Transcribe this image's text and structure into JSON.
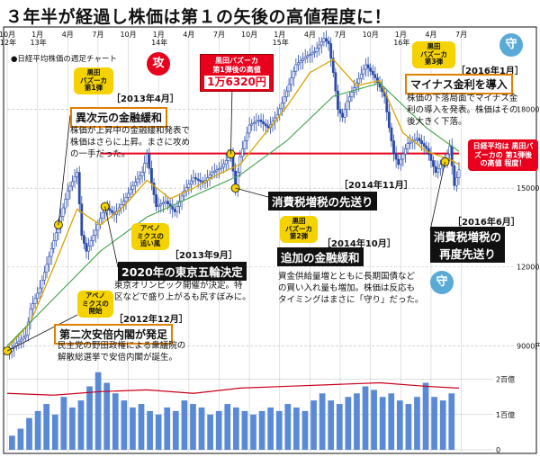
{
  "headline": "３年半が経過し株価は第１の矢後の高値程度に！",
  "legend": "●日経平均株価の週足チャート",
  "colors": {
    "up": "#2a4aa8",
    "down": "#2a4aa8",
    "ma": "#d9a400",
    "ma_long": "#3fa24a",
    "accent": "#e8001c",
    "bar": "#5a8ad6",
    "line": "#c8001c"
  },
  "stamps": [
    {
      "char": "攻",
      "color": "#e8001c"
    },
    {
      "char": "守",
      "color": "#5aaad8"
    },
    {
      "char": "守",
      "color": "#5aaad8"
    }
  ],
  "peak_box": {
    "title": "黒田バズーカ\n第1弾後の高値",
    "value": "1万6320円"
  },
  "red_note": "日経平均は\n黒田バズーカの\n第1弾後の高値\n程度！",
  "events": [
    {
      "yellow": "アベノ\nミクスの\n開始",
      "date": "［2012年12月］",
      "title": "第二次安倍内閣が発足",
      "note": "民主党の野田政権による衆議院の\n解散総選挙で安倍内閣が誕生。"
    },
    {
      "yellow": "黒田\nバズーカ\n第1弾",
      "date": "［2013年4月］",
      "title": "異次元の金融緩和",
      "note": "株価が上昇中の金融緩和発表で\n株価はさらに上昇。まさに攻め\nの一手だった。"
    },
    {
      "yellow": "アベノ\nミクスの\n追い風",
      "date": "［2013年9月］",
      "title": "2020年の東京五輪決定",
      "note": "東京オリンピック開催が決定。特\n区などで盛り上がるも尻すぼみに。"
    },
    {
      "yellow": "",
      "date": "［2014年11月］",
      "title": "消費税増税の先送り",
      "note": ""
    },
    {
      "yellow": "黒田\nバズーカ\n第2弾",
      "date": "［2014年10月］",
      "title": "追加の金融緩和",
      "note": "資金供給量増とともに長期国債など\nの買い入れ量も増加。株価は反応も\nタイミングはまさに「守り」だった。"
    },
    {
      "yellow": "黒田\nバズーカ\n第3弾",
      "date": "［2016年1月］",
      "title": "マイナス金利を導入",
      "note": "株価の下落局面でマイナス金\n利の導入を発表。株価はその\n後大きく下落。"
    },
    {
      "yellow": "",
      "date": "［2016年6月］",
      "title": "消費税増税の\n再度先送り",
      "note": ""
    }
  ],
  "chart_data": {
    "type": "line",
    "title": "３年半が経過し株価は第１の矢後の高値程度に！",
    "subtitle": "●日経平均株価の週足チャート",
    "x_tick_labels": [
      {
        "month": "10月",
        "year": "12年"
      },
      {
        "month": "1月",
        "year": "13年"
      },
      {
        "month": "4月",
        "year": ""
      },
      {
        "month": "7月",
        "year": ""
      },
      {
        "month": "10月",
        "year": ""
      },
      {
        "month": "1月",
        "year": "14年"
      },
      {
        "month": "4月",
        "year": ""
      },
      {
        "month": "7月",
        "year": ""
      },
      {
        "month": "10月",
        "year": ""
      },
      {
        "month": "1月",
        "year": "15年"
      },
      {
        "month": "4月",
        "year": ""
      },
      {
        "month": "7月",
        "year": ""
      },
      {
        "month": "10月",
        "year": ""
      },
      {
        "month": "1月",
        "year": "16年"
      },
      {
        "month": "4月",
        "year": ""
      },
      {
        "month": "7月",
        "year": ""
      }
    ],
    "y_ticks": [
      {
        "value": 18000,
        "label": "18000円"
      },
      {
        "value": 15000,
        "label": "15000円"
      },
      {
        "value": 12000,
        "label": "12000円"
      },
      {
        "value": 9000,
        "label": "9000円"
      }
    ],
    "ylim": [
      8600,
      21000
    ],
    "volume_ticks": [
      {
        "value": 2,
        "label": "2百億"
      },
      {
        "value": 1,
        "label": "1百億"
      },
      {
        "value": 0,
        "label": "0"
      }
    ],
    "reference_line": {
      "value": 16320,
      "label": "1万6320円"
    },
    "price_path": [
      [
        0,
        8700
      ],
      [
        4,
        9100
      ],
      [
        8,
        9400
      ],
      [
        10,
        10400
      ],
      [
        14,
        11200
      ],
      [
        18,
        12400
      ],
      [
        22,
        13600
      ],
      [
        26,
        14900
      ],
      [
        30,
        15600
      ],
      [
        32,
        13200
      ],
      [
        34,
        12600
      ],
      [
        38,
        13400
      ],
      [
        42,
        14300
      ],
      [
        46,
        14000
      ],
      [
        50,
        14500
      ],
      [
        54,
        15100
      ],
      [
        58,
        15600
      ],
      [
        60,
        16300
      ],
      [
        62,
        15200
      ],
      [
        64,
        14300
      ],
      [
        68,
        14500
      ],
      [
        72,
        14100
      ],
      [
        76,
        14900
      ],
      [
        80,
        15400
      ],
      [
        84,
        15200
      ],
      [
        88,
        15600
      ],
      [
        92,
        15800
      ],
      [
        96,
        16300
      ],
      [
        98,
        15000
      ],
      [
        100,
        16200
      ],
      [
        104,
        17400
      ],
      [
        108,
        17600
      ],
      [
        112,
        17300
      ],
      [
        116,
        17800
      ],
      [
        120,
        18700
      ],
      [
        124,
        19700
      ],
      [
        128,
        20000
      ],
      [
        132,
        20200
      ],
      [
        136,
        20700
      ],
      [
        138,
        20500
      ],
      [
        140,
        19400
      ],
      [
        142,
        18000
      ],
      [
        144,
        17700
      ],
      [
        146,
        18300
      ],
      [
        150,
        19000
      ],
      [
        154,
        19700
      ],
      [
        158,
        19200
      ],
      [
        162,
        18500
      ],
      [
        164,
        17300
      ],
      [
        166,
        16300
      ],
      [
        168,
        15900
      ],
      [
        172,
        16700
      ],
      [
        176,
        16900
      ],
      [
        180,
        16500
      ],
      [
        184,
        15600
      ],
      [
        186,
        15900
      ],
      [
        188,
        16000
      ],
      [
        190,
        16600
      ],
      [
        192,
        15100
      ],
      [
        194,
        15700
      ]
    ],
    "ma_short_path": [
      [
        0,
        8900
      ],
      [
        10,
        9900
      ],
      [
        20,
        12000
      ],
      [
        30,
        14200
      ],
      [
        40,
        13600
      ],
      [
        50,
        14300
      ],
      [
        60,
        15300
      ],
      [
        70,
        14600
      ],
      [
        80,
        15000
      ],
      [
        90,
        15500
      ],
      [
        100,
        15900
      ],
      [
        110,
        17000
      ],
      [
        120,
        18100
      ],
      [
        130,
        19400
      ],
      [
        140,
        19900
      ],
      [
        150,
        18900
      ],
      [
        160,
        19100
      ],
      [
        170,
        17100
      ],
      [
        180,
        16400
      ],
      [
        190,
        16100
      ],
      [
        194,
        15900
      ]
    ],
    "ma_long_path": [
      [
        0,
        9000
      ],
      [
        20,
        10800
      ],
      [
        40,
        12600
      ],
      [
        60,
        13900
      ],
      [
        80,
        14700
      ],
      [
        100,
        15500
      ],
      [
        120,
        16800
      ],
      [
        140,
        18500
      ],
      [
        160,
        19000
      ],
      [
        180,
        17300
      ],
      [
        194,
        16400
      ]
    ],
    "turnover_path": [
      [
        0,
        1.6
      ],
      [
        20,
        1.55
      ],
      [
        40,
        1.65
      ],
      [
        60,
        1.7
      ],
      [
        80,
        1.6
      ],
      [
        100,
        1.75
      ],
      [
        120,
        1.8
      ],
      [
        140,
        1.85
      ],
      [
        160,
        1.9
      ],
      [
        180,
        1.8
      ],
      [
        194,
        1.75
      ]
    ],
    "volume": [
      0.4,
      0.6,
      0.9,
      1.1,
      1.3,
      1.0,
      1.5,
      1.2,
      1.4,
      1.8,
      2.2,
      1.9,
      1.6,
      1.4,
      1.2,
      1.3,
      1.1,
      1.0,
      1.2,
      1.1,
      1.4,
      1.3,
      1.2,
      1.0,
      1.1,
      1.3,
      1.2,
      1.1,
      1.0,
      1.1,
      1.2,
      1.1,
      1.3,
      1.2,
      1.1,
      1.4,
      1.6,
      1.4,
      1.3,
      1.5,
      1.6,
      1.8,
      1.7,
      1.5,
      1.6,
      1.4,
      1.3,
      1.5,
      1.9,
      1.5,
      1.4,
      1.6
    ]
  }
}
